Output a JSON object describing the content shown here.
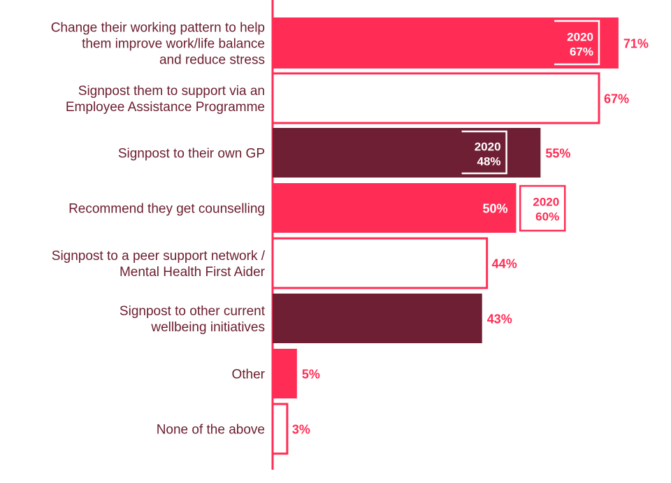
{
  "chart_data": {
    "type": "bar",
    "orientation": "horizontal",
    "xlim": [
      0,
      100
    ],
    "grid": false,
    "colors": {
      "pink": "#ff2d55",
      "maroon": "#6e1f33",
      "outline_fill": "#ffffff",
      "label_text": "#6b1d2e",
      "value_text": "#ff2d55"
    },
    "categories": [
      {
        "label": [
          "Change their working pattern to help",
          "them improve work/life balance",
          "and reduce stress"
        ],
        "value": 71,
        "value_label": "71%",
        "style": "pink",
        "comparison": {
          "value": 67,
          "year": "2020",
          "label": "67%"
        }
      },
      {
        "label": [
          "Signpost them to support via an",
          "Employee Assistance Programme"
        ],
        "value": 67,
        "value_label": "67%",
        "style": "outline"
      },
      {
        "label": [
          "Signpost to their own GP"
        ],
        "value": 55,
        "value_label": "55%",
        "style": "maroon",
        "comparison": {
          "value": 48,
          "year": "2020",
          "label": "48%"
        }
      },
      {
        "label": [
          "Recommend they get counselling"
        ],
        "value": 50,
        "value_label": "50%",
        "style": "pink",
        "value_inside": true,
        "comparison": {
          "value": 60,
          "year": "2020",
          "label": "60%"
        }
      },
      {
        "label": [
          "Signpost to a peer support network /",
          "Mental Health First Aider"
        ],
        "value": 44,
        "value_label": "44%",
        "style": "outline"
      },
      {
        "label": [
          "Signpost to other current",
          "wellbeing initiatives"
        ],
        "value": 43,
        "value_label": "43%",
        "style": "maroon"
      },
      {
        "label": [
          "Other"
        ],
        "value": 5,
        "value_label": "5%",
        "style": "pink"
      },
      {
        "label": [
          "None of the above"
        ],
        "value": 3,
        "value_label": "3%",
        "style": "outline"
      }
    ]
  }
}
